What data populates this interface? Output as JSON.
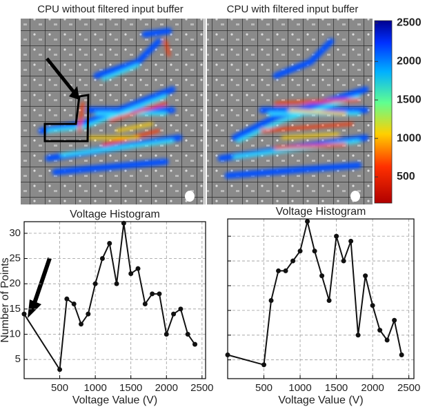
{
  "heatmaps": {
    "titles": [
      "CPU without filtered input buffer",
      "CPU with filtered input buffer"
    ],
    "colorbar": {
      "lim": [
        160,
        2530
      ],
      "ticks": [
        500,
        1000,
        1500,
        2000,
        2500
      ]
    }
  },
  "chart_data": [
    {
      "type": "line",
      "title": "Voltage Histogram",
      "xlabel": "Voltage Value (V)",
      "ylabel": "Number of Points",
      "x": [
        0,
        500,
        600,
        700,
        800,
        900,
        1000,
        1100,
        1200,
        1300,
        1400,
        1500,
        1600,
        1700,
        1800,
        1900,
        2000,
        2100,
        2200,
        2300,
        2400
      ],
      "series": [
        {
          "color": "#111111",
          "values": [
            14,
            3,
            17,
            16,
            12,
            14,
            20,
            25,
            28,
            20,
            32,
            22,
            23,
            16,
            18,
            18,
            10,
            14,
            15,
            10,
            8
          ]
        }
      ],
      "xlim": [
        0,
        2550
      ],
      "ylim": [
        1.2,
        32.3
      ],
      "xticks": [
        500,
        1000,
        1500,
        2000,
        2500
      ],
      "yticks": [
        5,
        10,
        15,
        20,
        25,
        30
      ],
      "ytick_labels": true,
      "grid": true
    },
    {
      "type": "line",
      "title": "Voltage Histogram",
      "xlabel": "Voltage Value (V)",
      "x": [
        0,
        500,
        600,
        700,
        800,
        900,
        1000,
        1100,
        1200,
        1300,
        1400,
        1500,
        1600,
        1700,
        1800,
        1900,
        2000,
        2100,
        2200,
        2300,
        2400
      ],
      "series": [
        {
          "color": "#111111",
          "values": [
            6,
            4,
            17,
            23,
            23,
            25,
            27,
            33,
            27,
            22,
            17,
            30,
            25,
            29,
            10,
            22,
            16,
            11,
            9,
            13,
            6
          ]
        }
      ],
      "xlim": [
        0,
        2570
      ],
      "ylim": [
        1.2,
        33.5
      ],
      "xticks": [
        500,
        1000,
        1500,
        2000,
        2500
      ],
      "yticks": [
        5,
        10,
        15,
        20,
        25,
        30
      ],
      "ytick_labels": false,
      "grid": true
    }
  ]
}
